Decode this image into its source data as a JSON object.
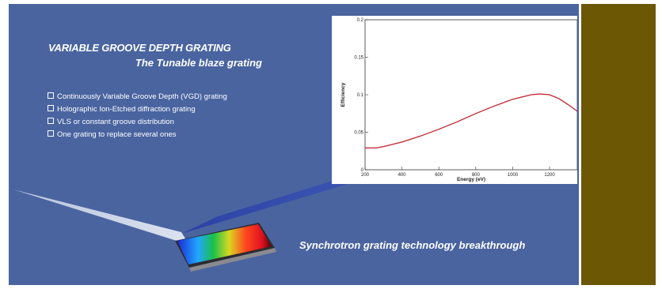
{
  "banner": {
    "title": "VARIABLE GROOVE DEPTH GRATING",
    "subtitle": "The Tunable blaze grating",
    "features": [
      "Continuously Variable Groove Depth (VGD) grating",
      "Holographic Ion-Etched diffraction grating",
      "VLS or constant groove distribution",
      "One grating to replace several ones"
    ],
    "tagline": "Synchrotron grating technology breakthrough",
    "background_color": "#4a64a0",
    "side_panel_color": "#6b5704",
    "icons": [
      "checkbox-bullet-icon",
      "light-beam-graphic",
      "diffraction-grating-graphic"
    ]
  },
  "chart_data": {
    "type": "line",
    "xlabel": "Energy (eV)",
    "ylabel": "Efficiency",
    "xlim": [
      200,
      1350
    ],
    "ylim": [
      0,
      0.2
    ],
    "x_ticks": [
      "200",
      "400",
      "600",
      "800",
      "1000",
      "1200"
    ],
    "y_ticks": [
      "0",
      "0.05",
      "0.1",
      "0.15",
      "0.2"
    ],
    "series": [
      {
        "color": "#c0202a",
        "x": [
          200,
          260,
          300,
          400,
          500,
          600,
          700,
          800,
          900,
          1000,
          1100,
          1150,
          1200,
          1250,
          1300,
          1350
        ],
        "y": [
          0.029,
          0.029,
          0.031,
          0.037,
          0.045,
          0.054,
          0.064,
          0.075,
          0.085,
          0.094,
          0.1,
          0.101,
          0.1,
          0.095,
          0.087,
          0.078
        ]
      }
    ]
  }
}
